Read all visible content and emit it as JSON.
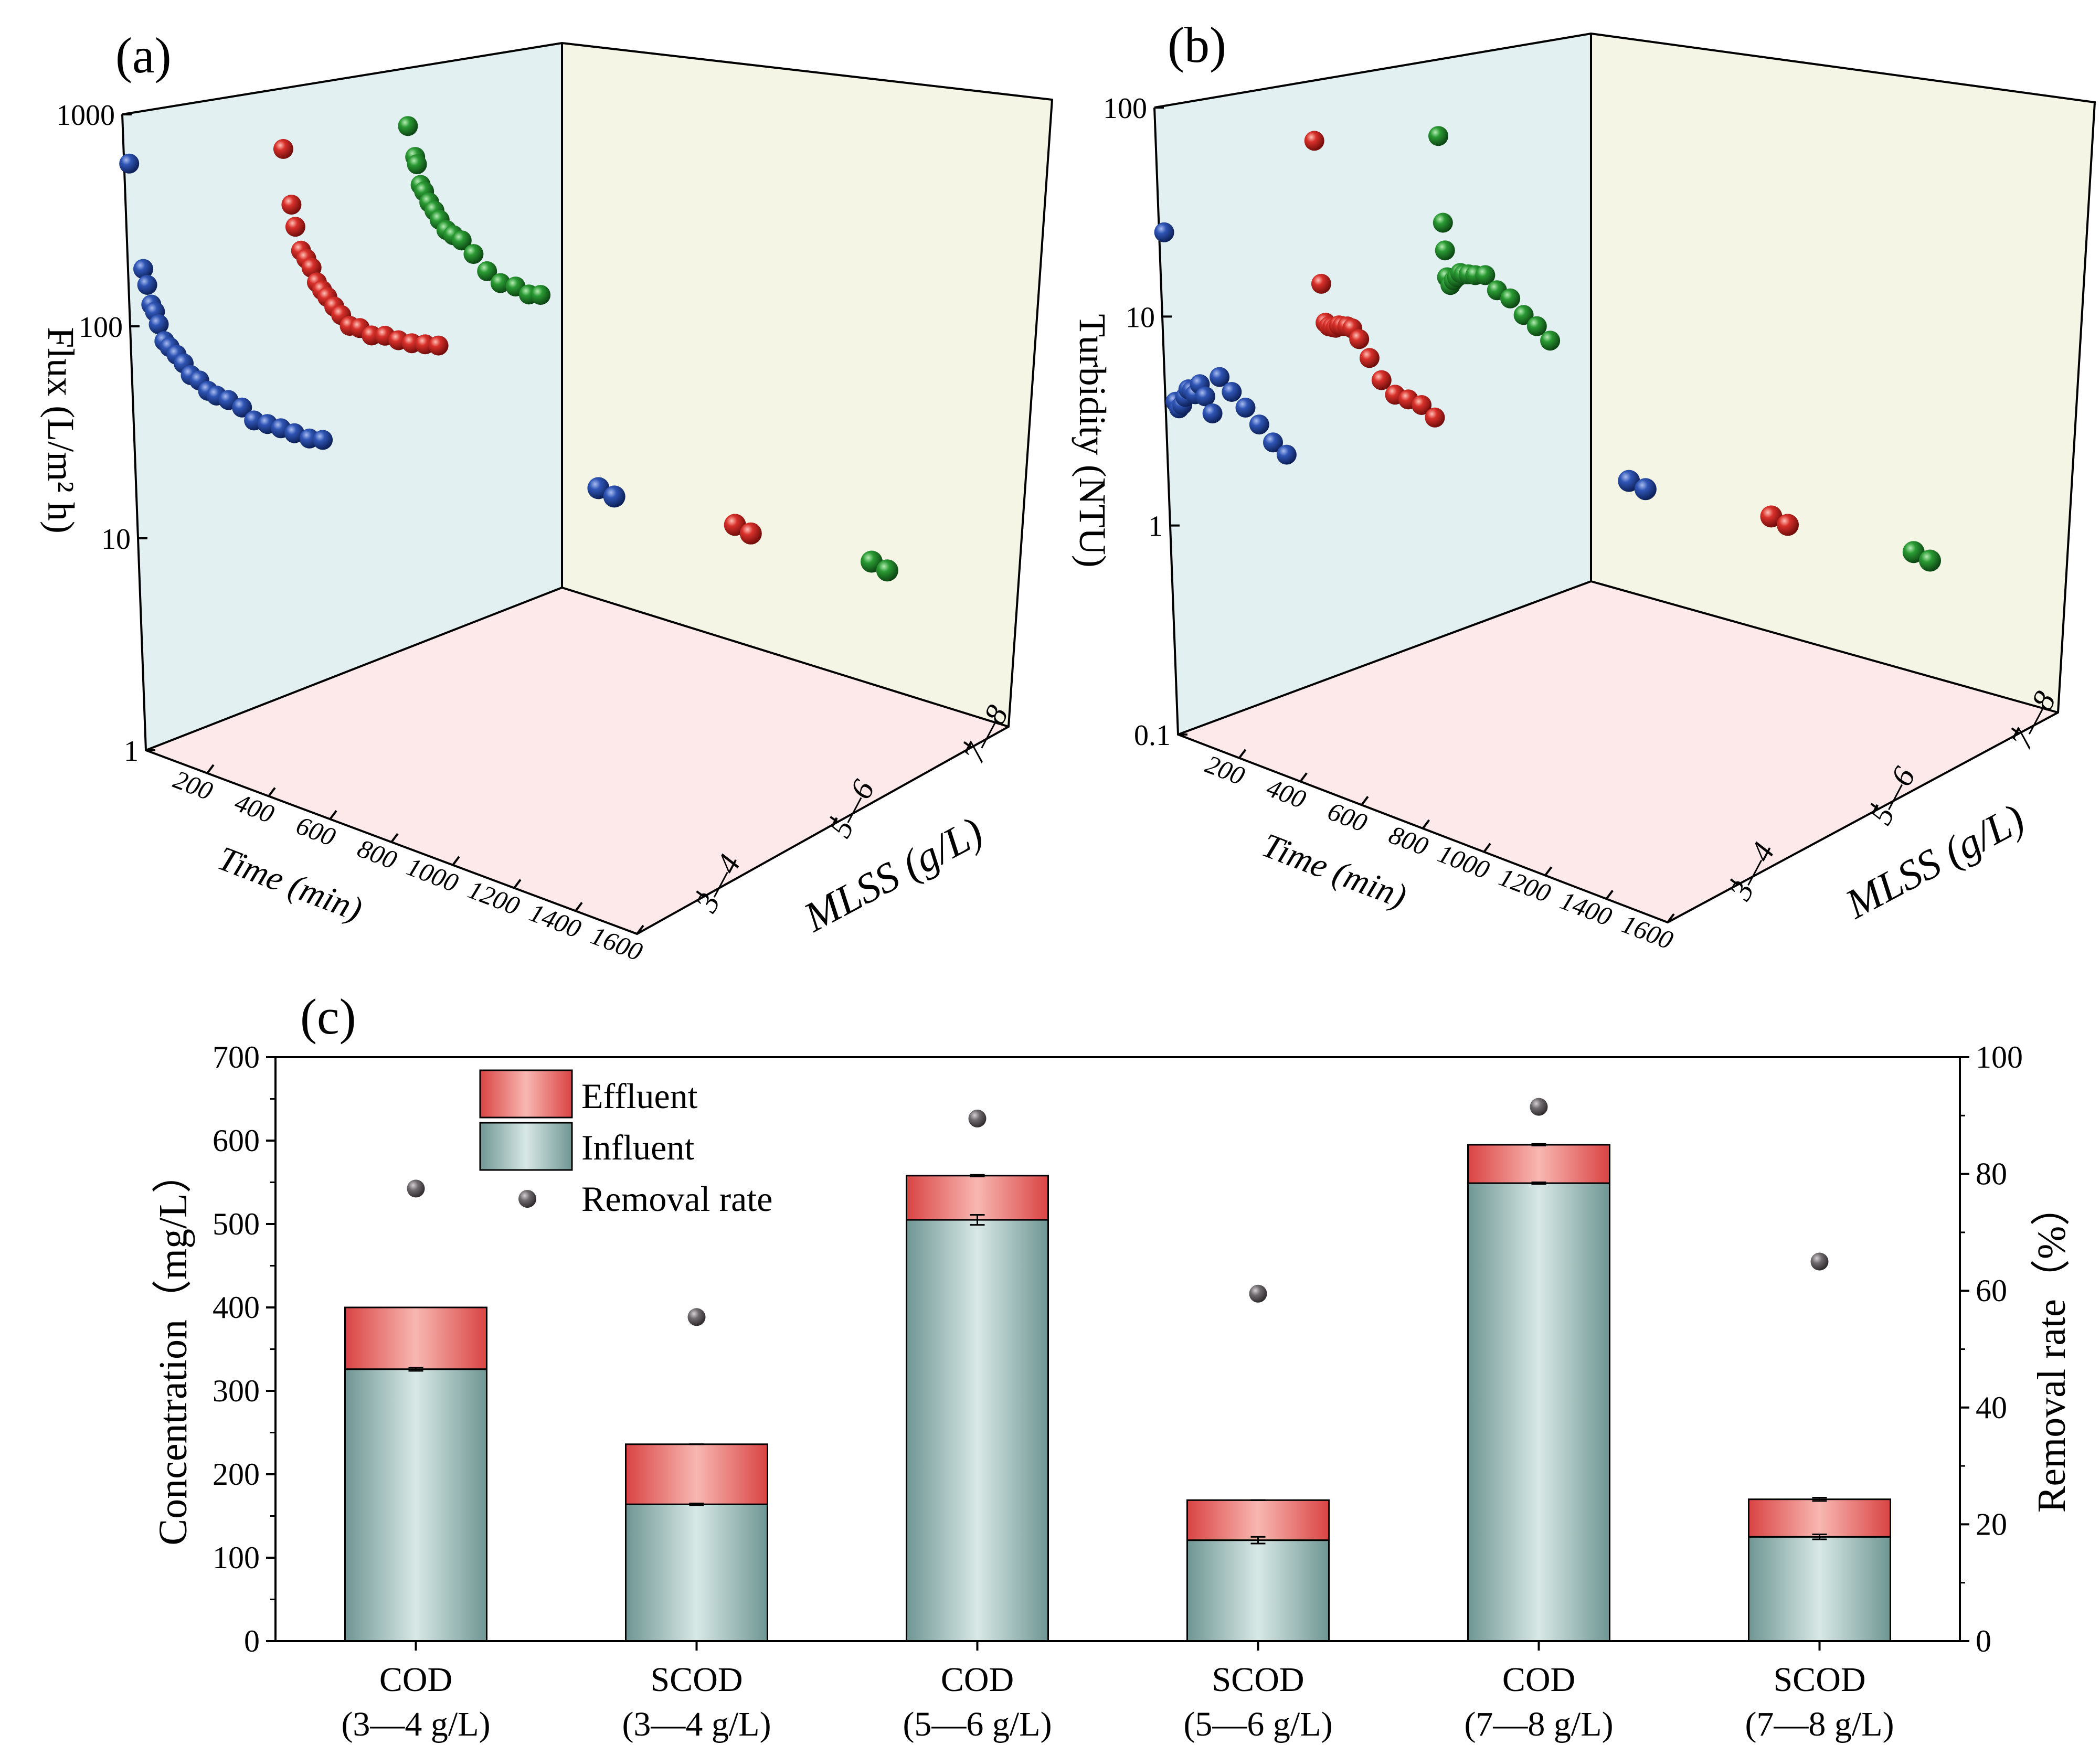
{
  "colors": {
    "blue": "#1f3f8f",
    "red": "#c8201e",
    "green": "#1b7d25",
    "back_wall": "#e2f0f1",
    "side_wall": "#f4f5e4",
    "floor": "#fde8ea",
    "bar_influent": "#7a9f9c",
    "bar_influent_light": "#d2e4e2",
    "bar_effluent": "#de4c4c",
    "bar_effluent_light": "#f6b1ad",
    "marker": "#6a6568"
  },
  "chart_data": [
    {
      "type": "scatter",
      "panel_label": "(a)",
      "zlabel": "Flux (L/m² h)",
      "xlabel": "Time (min)",
      "ylabel": "MLSS (g/L)",
      "z_scale": "log",
      "zlim": [
        1,
        1000
      ],
      "z_ticks": [
        "1",
        "10",
        "100",
        "1000"
      ],
      "x_ticks": [
        "200",
        "400",
        "600",
        "800",
        "1000",
        "1200",
        "1400",
        "1600"
      ],
      "y_ticks": [
        "3—4",
        "5—6",
        "7—8"
      ],
      "series": [
        {
          "name": "3—4 g/L",
          "color_key": "blue",
          "x": [
            30,
            90,
            110,
            130,
            150,
            170,
            200,
            230,
            270,
            310,
            350,
            400,
            450,
            500,
            570,
            650,
            720,
            800,
            880,
            960,
            1050,
            1130
          ],
          "z": [
            580,
            180,
            150,
            120,
            110,
            95,
            78,
            72,
            65,
            58,
            50,
            46,
            40,
            37,
            34,
            30,
            25,
            23,
            21,
            19,
            17,
            16
          ]
        },
        {
          "name": "5—6 g/L",
          "color_key": "red",
          "x": [
            20,
            60,
            80,
            110,
            140,
            170,
            200,
            230,
            260,
            300,
            340,
            390,
            450,
            520,
            600,
            680,
            760,
            840,
            920
          ],
          "z": [
            500,
            260,
            200,
            150,
            135,
            120,
            100,
            90,
            82,
            72,
            64,
            55,
            52,
            46,
            44,
            40,
            37,
            35,
            33
          ]
        },
        {
          "name": "7—8 g/L",
          "color_key": "green",
          "x": [
            20,
            60,
            70,
            90,
            110,
            140,
            170,
            200,
            240,
            280,
            330,
            400,
            480,
            560,
            650,
            730,
            800
          ],
          "z": [
            500,
            340,
            310,
            240,
            220,
            190,
            170,
            150,
            130,
            120,
            110,
            90,
            70,
            58,
            53,
            46,
            44
          ]
        }
      ],
      "projected_points": {
        "blue": [
          [
            1450,
            4
          ],
          [
            1540,
            3.8
          ]
        ],
        "red": [
          [
            1430,
            4
          ],
          [
            1530,
            3.8
          ]
        ],
        "green": [
          [
            1450,
            4
          ],
          [
            1540,
            3.8
          ]
        ]
      }
    },
    {
      "type": "scatter",
      "panel_label": "(b)",
      "zlabel": "Turbidity (NTU)",
      "xlabel": "Time (min)",
      "ylabel": "MLSS (g/L)",
      "z_scale": "log",
      "zlim": [
        0.1,
        100
      ],
      "z_ticks": [
        "0.1",
        "1",
        "10",
        "100"
      ],
      "x_ticks": [
        "200",
        "400",
        "600",
        "800",
        "1000",
        "1200",
        "1400",
        "1600"
      ],
      "y_ticks": [
        "3—4",
        "5—6",
        "7—8"
      ],
      "series": [
        {
          "name": "3—4 g/L",
          "color_key": "blue",
          "x": [
            30,
            60,
            80,
            100,
            120,
            140,
            160,
            180,
            210,
            240,
            280,
            330,
            400,
            480,
            560,
            640,
            720
          ],
          "z": [
            25,
            3.8,
            3.5,
            3.6,
            3.9,
            4.2,
            4.1,
            3.9,
            4.3,
            3.7,
            3.0,
            4.4,
            3.6,
            2.9,
            2.3,
            1.8,
            1.5
          ]
        },
        {
          "name": "5—6 g/L",
          "color_key": "red",
          "x": [
            20,
            40,
            60,
            80,
            100,
            120,
            140,
            160,
            190,
            220,
            260,
            320,
            390,
            470,
            550,
            630,
            710
          ],
          "z": [
            50,
            9.5,
            6.0,
            5.7,
            5.6,
            5.5,
            5.6,
            5.5,
            5.4,
            5.2,
            4.5,
            3.5,
            2.6,
            2.1,
            1.9,
            1.7,
            1.4
          ]
        },
        {
          "name": "7—8 g/L",
          "color_key": "green",
          "x": [
            20,
            40,
            50,
            60,
            80,
            100,
            120,
            140,
            160,
            190,
            230,
            290,
            360,
            440,
            520,
            600,
            680
          ],
          "z": [
            40,
            14,
            10,
            7.2,
            6.5,
            6.8,
            7.0,
            7.3,
            7.1,
            7.0,
            6.8,
            6.6,
            5.3,
            4.6,
            3.6,
            3.0,
            2.4
          ]
        }
      ],
      "projected_points": {
        "blue": [
          [
            1450,
            0.4
          ],
          [
            1540,
            0.38
          ]
        ],
        "red": [
          [
            1430,
            0.4
          ],
          [
            1530,
            0.38
          ]
        ],
        "green": [
          [
            1450,
            0.4
          ],
          [
            1540,
            0.38
          ]
        ]
      }
    },
    {
      "type": "bar",
      "panel_label": "(c)",
      "ylabel": "Concentration（mg/L）",
      "y2label": "Removal rate（%）",
      "ylim": [
        0,
        700
      ],
      "y2lim": [
        0,
        100
      ],
      "y_ticks": [
        "0",
        "100",
        "200",
        "300",
        "400",
        "500",
        "600",
        "700"
      ],
      "y2_ticks": [
        "0",
        "20",
        "40",
        "60",
        "80",
        "100"
      ],
      "categories": [
        {
          "line1": "COD",
          "line2": "(3—4 g/L)"
        },
        {
          "line1": "SCOD",
          "line2": "(3—4 g/L)"
        },
        {
          "line1": "COD",
          "line2": "(5—6 g/L)"
        },
        {
          "line1": "SCOD",
          "line2": "(5—6 g/L)"
        },
        {
          "line1": "COD",
          "line2": "(7—8 g/L)"
        },
        {
          "line1": "SCOD",
          "line2": "(7—8 g/L)"
        }
      ],
      "series": [
        {
          "name": "Influent",
          "values": [
            326,
            164,
            505,
            121,
            549,
            125
          ],
          "errors": [
            2,
            1,
            6,
            4,
            1,
            3
          ]
        },
        {
          "name": "Effluent",
          "values": [
            74,
            72,
            53,
            48,
            46,
            45
          ],
          "errors": [
            0,
            0,
            1,
            0,
            1,
            2
          ]
        },
        {
          "name": "Removal rate",
          "axis": "right",
          "values": [
            77.5,
            55.5,
            89.5,
            59.5,
            91.5,
            65
          ]
        }
      ],
      "legend": [
        "Effluent",
        "Influent",
        "Removal rate"
      ],
      "legend_position": "top-left"
    }
  ]
}
